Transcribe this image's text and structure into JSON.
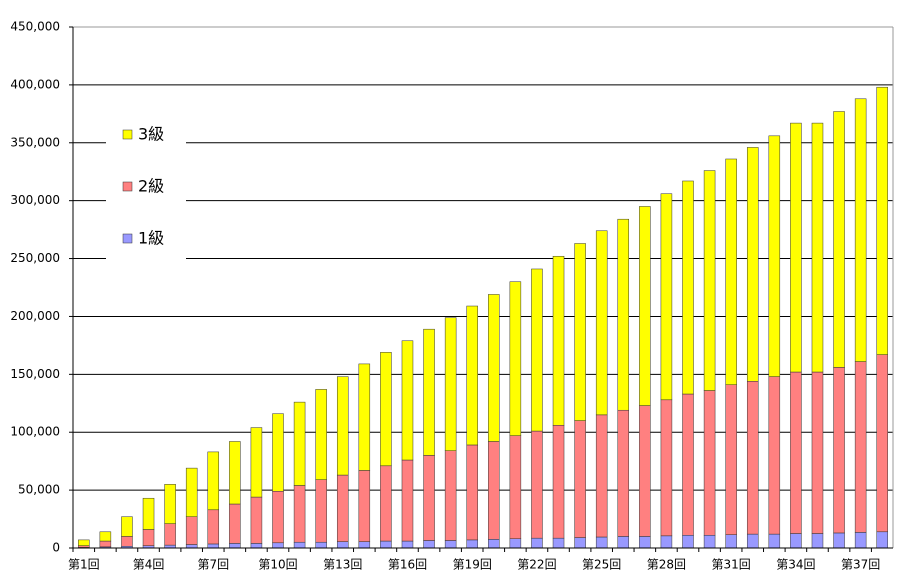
{
  "chart_data": {
    "type": "stacked-bar",
    "categories": [
      "第1回",
      null,
      null,
      "第4回",
      null,
      null,
      "第7回",
      null,
      null,
      "第10回",
      null,
      null,
      "第13回",
      null,
      null,
      "第16回",
      null,
      null,
      "第19回",
      null,
      null,
      "第22回",
      null,
      null,
      "第25回",
      null,
      null,
      "第28回",
      null,
      null,
      "第31回",
      null,
      null,
      "第34回",
      null,
      null,
      "第37回",
      null
    ],
    "series": [
      {
        "name": "1級",
        "color": "#9999ff",
        "values": [
          500,
          1000,
          1500,
          2000,
          2500,
          3000,
          3500,
          4000,
          4000,
          4500,
          5000,
          5000,
          5500,
          5500,
          6000,
          6000,
          6500,
          6500,
          7000,
          7500,
          8000,
          8500,
          8500,
          9000,
          9500,
          10000,
          10000,
          10500,
          11000,
          11000,
          11500,
          12000,
          12000,
          12500,
          12500,
          13000,
          13500,
          14000
        ]
      },
      {
        "name": "2級",
        "color": "#ff8080",
        "values": [
          1500,
          5000,
          8500,
          14000,
          18500,
          24000,
          29500,
          34000,
          40000,
          44500,
          49000,
          54000,
          57500,
          61500,
          65000,
          70000,
          73500,
          77500,
          82000,
          84500,
          89000,
          92500,
          97500,
          101000,
          105500,
          109000,
          113000,
          117500,
          122000,
          125000,
          129500,
          132000,
          136000,
          139500,
          139500,
          143000,
          147500,
          153000
        ]
      },
      {
        "name": "3級",
        "color": "#ffff00",
        "values": [
          5000,
          8000,
          17000,
          27000,
          34000,
          42000,
          50000,
          54000,
          60000,
          67000,
          72000,
          78000,
          85000,
          92000,
          98000,
          103000,
          109000,
          115000,
          120000,
          127000,
          133000,
          140000,
          146000,
          153000,
          159000,
          165000,
          172000,
          178000,
          184000,
          190000,
          195000,
          202000,
          208000,
          215000,
          215000,
          221000,
          227000,
          231000
        ]
      }
    ],
    "ylim": [
      0,
      450000
    ],
    "yticks": [
      0,
      {
        "value": 50000,
        "label": "50,000"
      },
      {
        "value": 100000,
        "label": "100,000"
      },
      {
        "value": 150000,
        "label": "150,000"
      },
      {
        "value": 200000,
        "label": "200,000"
      },
      {
        "value": 250000,
        "label": "250,000"
      },
      {
        "value": 300000,
        "label": "300,000"
      },
      {
        "value": 350000,
        "label": "350,000"
      },
      {
        "value": 400000,
        "label": "400,000"
      },
      {
        "value": 450000,
        "label": "450,000"
      }
    ],
    "grid": true,
    "legend": "upper-left"
  }
}
